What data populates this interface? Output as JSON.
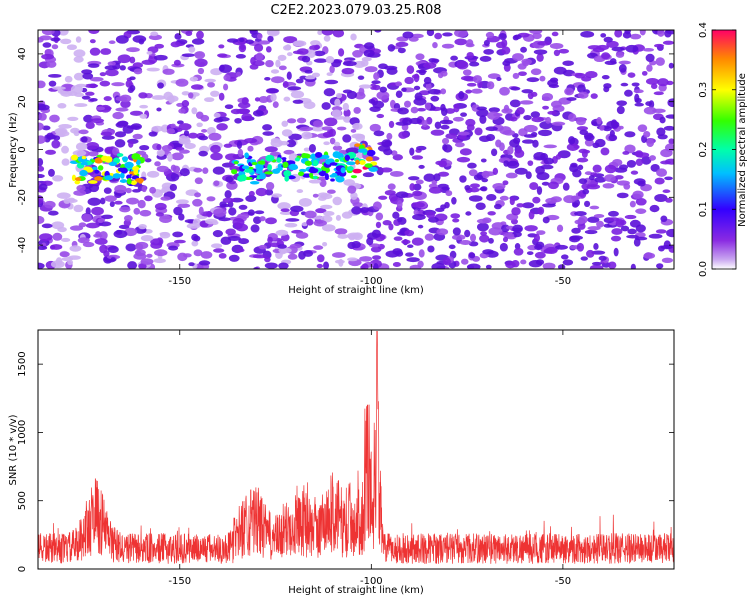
{
  "title": "C2E2.2023.079.03.25.R08",
  "chart_data": [
    {
      "type": "heatmap",
      "xlabel": "Height of straight line (km)",
      "ylabel": "Frequency (Hz)",
      "xlim": [
        -187,
        -21
      ],
      "ylim": [
        -50,
        50
      ],
      "xticks": [
        -150,
        -100,
        -50
      ],
      "yticks": [
        -40,
        -20,
        0,
        20,
        40
      ],
      "colorbar": {
        "label": "Normalized spectral amplitude",
        "range": [
          0,
          0.4
        ],
        "ticks": [
          0.0,
          0.1,
          0.2,
          0.3,
          0.4
        ]
      },
      "features": [
        {
          "x_range": [
            -178,
            -160
          ],
          "freq_center": -8,
          "peak_amplitude": 0.3
        },
        {
          "x_range": [
            -136,
            -104
          ],
          "freq_center": -8,
          "peak_amplitude": 0.2
        },
        {
          "x_range": [
            -104,
            -99
          ],
          "freq_center": -4,
          "peak_amplitude": 0.35
        }
      ]
    },
    {
      "type": "line",
      "xlabel": "Height of straight line (km)",
      "ylabel": "SNR (10 * v/v)",
      "xlim": [
        -187,
        -21
      ],
      "ylim": [
        0,
        1750
      ],
      "xticks": [
        -150,
        -100,
        -50
      ],
      "yticks": [
        0,
        500,
        1000,
        1500
      ],
      "series": [
        {
          "color": "#ee3333",
          "baseline": 150,
          "peaks": [
            {
              "x": -172,
              "y": 660
            },
            {
              "x": -131,
              "y": 500
            },
            {
              "x": -119,
              "y": 520
            },
            {
              "x": -110,
              "y": 600
            },
            {
              "x": -101,
              "y": 1200
            },
            {
              "x": -98.5,
              "y": 1740
            }
          ]
        }
      ]
    }
  ]
}
